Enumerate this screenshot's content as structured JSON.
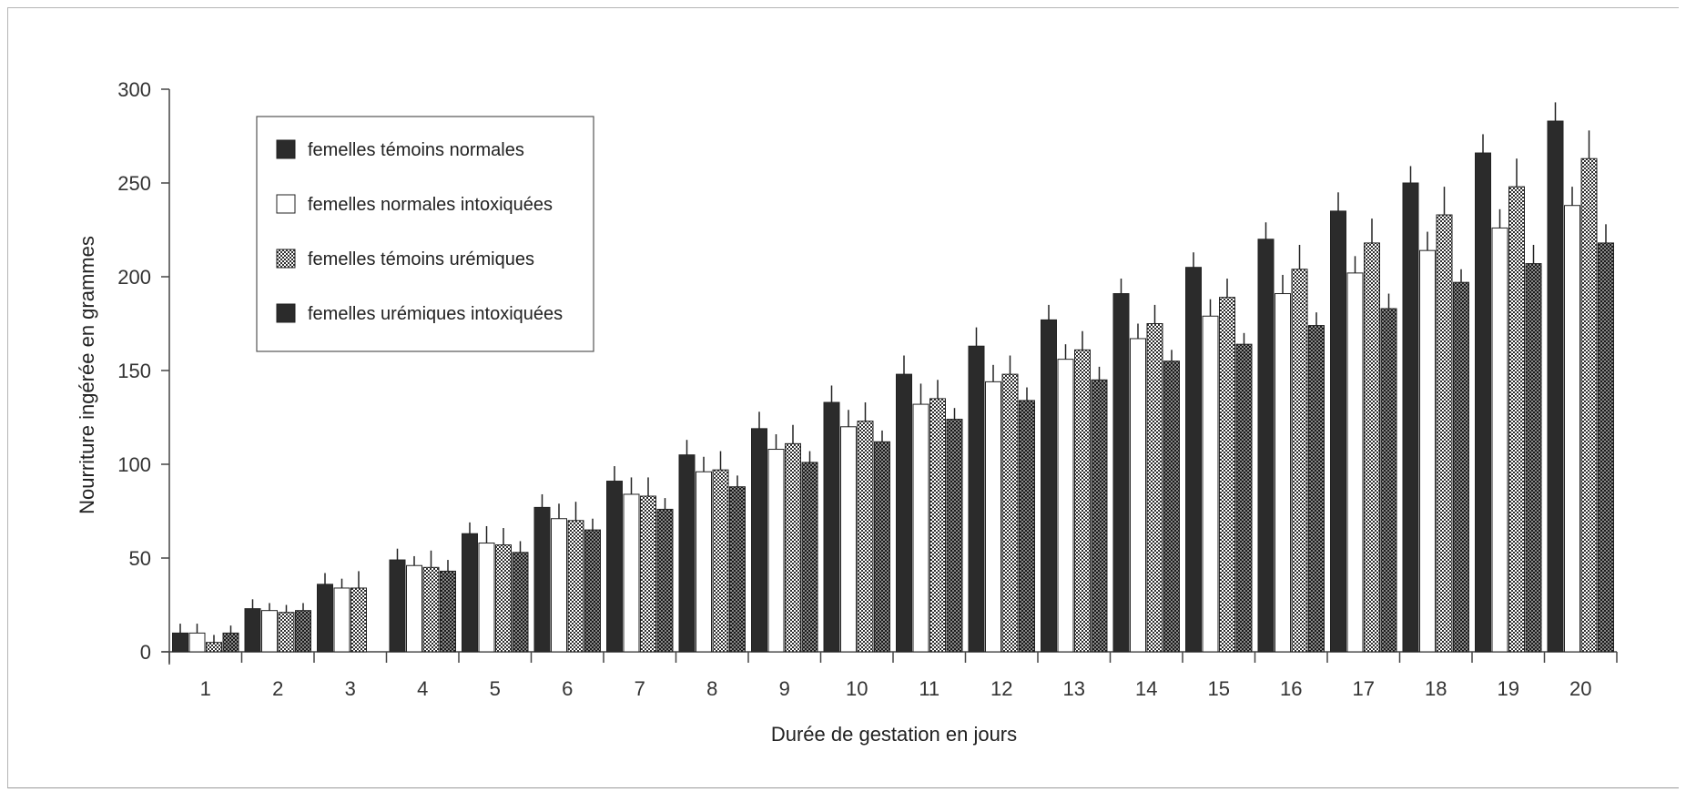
{
  "chart_data": {
    "type": "bar",
    "title": "",
    "xlabel": "Durée de gestation en jours",
    "ylabel": "Nourriture ingérée en grammes",
    "ylim": [
      0,
      300
    ],
    "yticks": [
      "0",
      "50",
      "100",
      "150",
      "200",
      "250",
      "300"
    ],
    "categories": [
      "1",
      "2",
      "3",
      "4",
      "5",
      "6",
      "7",
      "8",
      "9",
      "10",
      "11",
      "12",
      "13",
      "14",
      "15",
      "16",
      "17",
      "18",
      "19",
      "20"
    ],
    "grid": false,
    "legend_position": "top-left",
    "series": [
      {
        "name": "femelles témoins normales",
        "fill": "#2b2b2b",
        "pattern": "solid",
        "values": [
          10,
          23,
          36,
          49,
          63,
          77,
          91,
          105,
          119,
          133,
          148,
          163,
          177,
          191,
          205,
          220,
          235,
          250,
          266,
          283
        ],
        "errors": [
          5,
          5,
          6,
          6,
          6,
          7,
          8,
          8,
          9,
          9,
          10,
          10,
          8,
          8,
          8,
          9,
          10,
          9,
          10,
          10
        ]
      },
      {
        "name": "femelles normales intoxiquées",
        "fill": "#ffffff",
        "pattern": "open",
        "values": [
          10,
          22,
          34,
          46,
          58,
          71,
          84,
          96,
          108,
          120,
          132,
          144,
          156,
          167,
          179,
          191,
          202,
          214,
          226,
          238
        ],
        "errors": [
          5,
          4,
          5,
          5,
          9,
          8,
          9,
          8,
          8,
          9,
          11,
          9,
          8,
          8,
          9,
          10,
          9,
          10,
          10,
          10
        ]
      },
      {
        "name": "femelles témoins urémiques",
        "fill": "#8c8c8c",
        "pattern": "checkered",
        "values": [
          5,
          21,
          34,
          45,
          57,
          70,
          83,
          97,
          111,
          123,
          135,
          148,
          161,
          175,
          189,
          204,
          218,
          233,
          248,
          263
        ],
        "errors": [
          4,
          4,
          9,
          9,
          9,
          10,
          10,
          10,
          10,
          10,
          10,
          10,
          10,
          10,
          10,
          13,
          13,
          15,
          15,
          15
        ]
      },
      {
        "name": "femelles urémiques intoxiquées",
        "fill": "#555555",
        "pattern": "dark-checkered",
        "values": [
          10,
          22,
          null,
          43,
          53,
          65,
          76,
          88,
          101,
          112,
          124,
          134,
          145,
          155,
          164,
          174,
          183,
          197,
          207,
          218
        ],
        "errors": [
          4,
          4,
          null,
          6,
          6,
          6,
          6,
          6,
          6,
          6,
          6,
          7,
          7,
          6,
          6,
          7,
          8,
          7,
          10,
          10
        ]
      }
    ]
  }
}
